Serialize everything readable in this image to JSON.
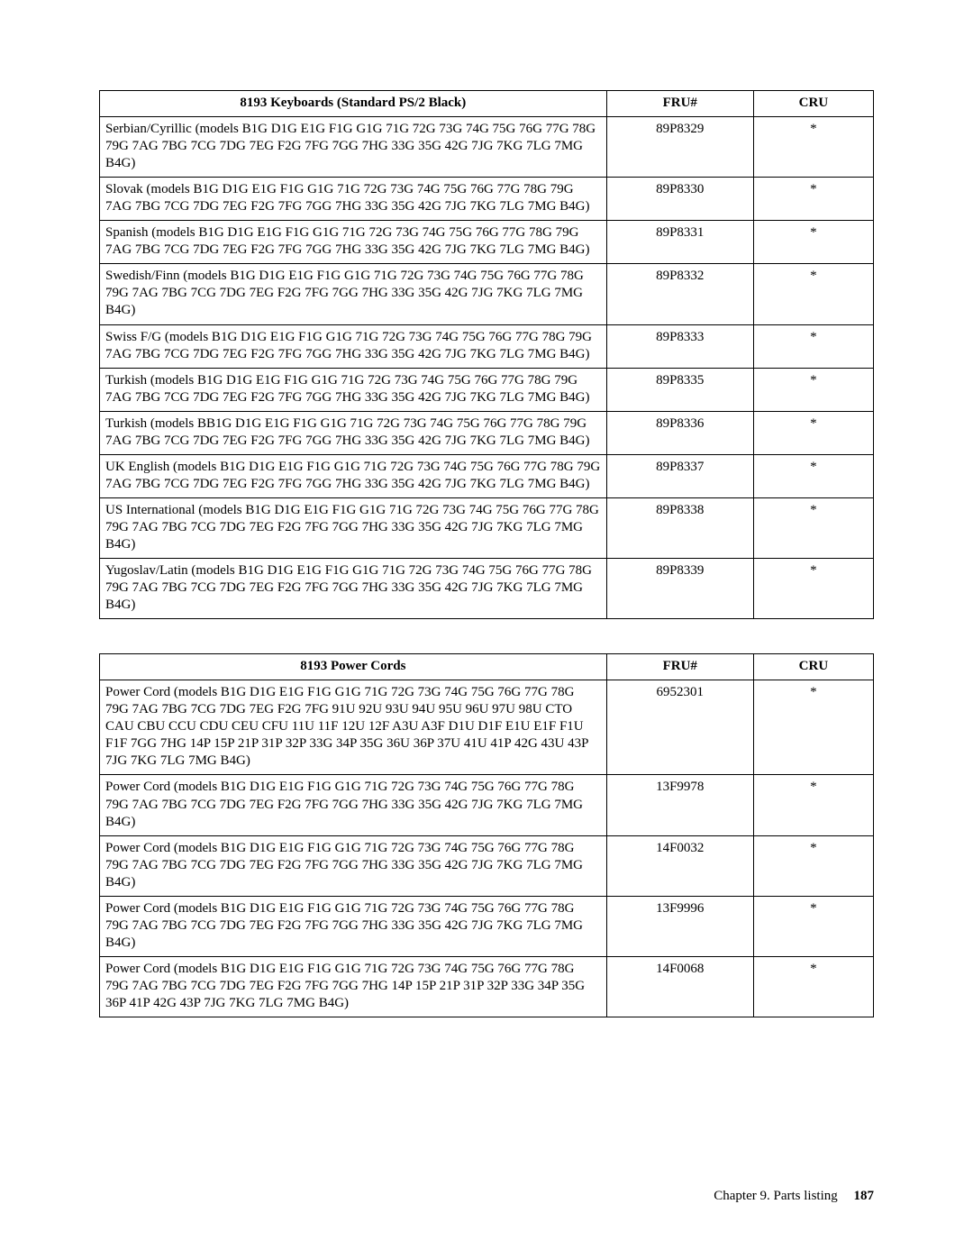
{
  "tables": [
    {
      "columns": [
        "8193 Keyboards (Standard PS/2 Black)",
        "FRU#",
        "CRU"
      ],
      "rows": [
        {
          "desc": "Serbian/Cyrillic (models B1G D1G E1G F1G G1G 71G 72G 73G 74G 75G 76G 77G 78G 79G 7AG 7BG 7CG 7DG 7EG F2G 7FG 7GG 7HG 33G 35G 42G 7JG 7KG 7LG 7MG B4G)",
          "fru": "89P8329",
          "cru": "*"
        },
        {
          "desc": "Slovak (models B1G D1G E1G F1G G1G 71G 72G 73G 74G 75G 76G 77G 78G 79G 7AG 7BG 7CG 7DG 7EG F2G 7FG 7GG 7HG 33G 35G 42G 7JG 7KG 7LG 7MG B4G)",
          "fru": "89P8330",
          "cru": "*"
        },
        {
          "desc": "Spanish (models B1G D1G E1G F1G G1G 71G 72G 73G 74G 75G 76G 77G 78G 79G 7AG 7BG 7CG 7DG 7EG F2G 7FG 7GG 7HG 33G 35G 42G 7JG 7KG 7LG 7MG B4G)",
          "fru": "89P8331",
          "cru": "*"
        },
        {
          "desc": "Swedish/Finn (models B1G D1G E1G F1G G1G 71G 72G 73G 74G 75G 76G 77G 78G 79G 7AG 7BG 7CG 7DG 7EG F2G 7FG 7GG 7HG 33G 35G 42G 7JG 7KG 7LG 7MG B4G)",
          "fru": "89P8332",
          "cru": "*"
        },
        {
          "desc": "Swiss F/G (models B1G D1G E1G F1G G1G 71G 72G 73G 74G 75G 76G 77G 78G 79G 7AG 7BG 7CG 7DG 7EG F2G 7FG 7GG 7HG 33G 35G 42G 7JG 7KG 7LG 7MG B4G)",
          "fru": "89P8333",
          "cru": "*"
        },
        {
          "desc": "Turkish (models B1G D1G E1G F1G G1G 71G 72G 73G 74G 75G 76G 77G 78G 79G 7AG 7BG 7CG 7DG 7EG F2G 7FG 7GG 7HG 33G 35G 42G 7JG 7KG 7LG 7MG B4G)",
          "fru": "89P8335",
          "cru": "*"
        },
        {
          "desc": "Turkish (models BB1G D1G E1G F1G G1G 71G 72G 73G 74G 75G 76G 77G 78G 79G 7AG 7BG 7CG 7DG 7EG F2G 7FG 7GG 7HG 33G 35G 42G 7JG 7KG 7LG 7MG B4G)",
          "fru": "89P8336",
          "cru": "*"
        },
        {
          "desc": "UK English (models B1G D1G E1G F1G G1G 71G 72G 73G 74G 75G 76G 77G 78G 79G 7AG 7BG 7CG 7DG 7EG F2G 7FG 7GG 7HG 33G 35G 42G 7JG 7KG 7LG 7MG B4G)",
          "fru": "89P8337",
          "cru": "*"
        },
        {
          "desc": "US International (models B1G D1G E1G F1G G1G 71G 72G 73G 74G 75G 76G 77G 78G 79G 7AG 7BG 7CG 7DG 7EG F2G 7FG 7GG 7HG 33G 35G 42G 7JG 7KG 7LG 7MG B4G)",
          "fru": "89P8338",
          "cru": "*"
        },
        {
          "desc": "Yugoslav/Latin (models B1G D1G E1G F1G G1G 71G 72G 73G 74G 75G 76G 77G 78G 79G 7AG 7BG 7CG 7DG 7EG F2G 7FG 7GG 7HG 33G 35G 42G 7JG 7KG 7LG 7MG B4G)",
          "fru": "89P8339",
          "cru": "*"
        }
      ]
    },
    {
      "columns": [
        "8193 Power Cords",
        "FRU#",
        "CRU"
      ],
      "rows": [
        {
          "desc": "Power Cord (models B1G D1G E1G F1G G1G 71G 72G 73G 74G 75G 76G 77G 78G 79G 7AG 7BG 7CG 7DG 7EG F2G 7FG 91U 92U 93U 94U 95U 96U 97U 98U CTO CAU CBU CCU CDU CEU CFU 11U 11F 12U 12F A3U A3F D1U D1F E1U E1F F1U F1F 7GG 7HG 14P 15P 21P 31P 32P 33G 34P 35G 36U 36P 37U 41U 41P 42G 43U 43P 7JG 7KG 7LG 7MG B4G)",
          "fru": "6952301",
          "cru": "*"
        },
        {
          "desc": "Power Cord (models B1G D1G E1G F1G G1G 71G 72G 73G 74G 75G 76G 77G 78G 79G 7AG 7BG 7CG 7DG 7EG F2G 7FG 7GG 7HG 33G 35G 42G 7JG 7KG 7LG 7MG B4G)",
          "fru": "13F9978",
          "cru": "*"
        },
        {
          "desc": "Power Cord (models B1G D1G E1G F1G G1G 71G 72G 73G 74G 75G 76G 77G 78G 79G 7AG 7BG 7CG 7DG 7EG F2G 7FG 7GG 7HG 33G 35G 42G 7JG 7KG 7LG 7MG B4G)",
          "fru": "14F0032",
          "cru": "*"
        },
        {
          "desc": "Power Cord (models B1G D1G E1G F1G G1G 71G 72G 73G 74G 75G 76G 77G 78G 79G 7AG 7BG 7CG 7DG 7EG F2G 7FG 7GG 7HG 33G 35G 42G 7JG 7KG 7LG 7MG B4G)",
          "fru": "13F9996",
          "cru": "*"
        },
        {
          "desc": "Power Cord (models B1G D1G E1G F1G G1G 71G 72G 73G 74G 75G 76G 77G 78G 79G 7AG 7BG 7CG 7DG 7EG F2G 7FG 7GG 7HG 14P 15P 21P 31P 32P 33G 34P 35G 36P 41P 42G 43P 7JG 7KG 7LG 7MG B4G)",
          "fru": "14F0068",
          "cru": "*"
        }
      ]
    }
  ],
  "footer": {
    "chapter": "Chapter 9. Parts listing",
    "page": "187"
  }
}
